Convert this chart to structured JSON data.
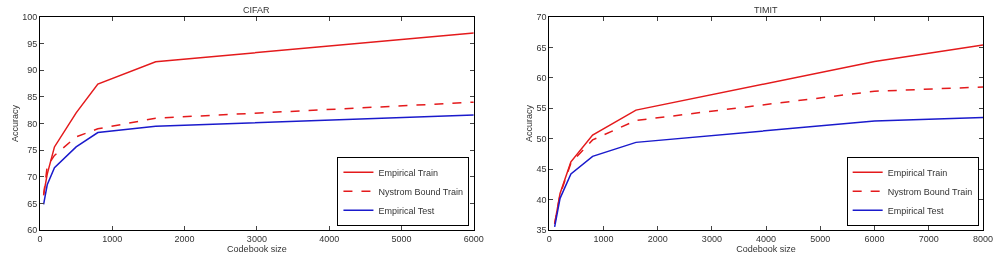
{
  "chart_data": [
    {
      "type": "line",
      "title": "CIFAR",
      "xlabel": "Codebook size",
      "ylabel": "Accuracy",
      "x": [
        50,
        100,
        200,
        500,
        800,
        1600,
        6000
      ],
      "series": [
        {
          "name": "Empirical Train",
          "color": "#e41a1c",
          "line_style": "solid",
          "values": [
            66.7,
            70.5,
            75.6,
            82,
            87.4,
            91.6,
            97
          ]
        },
        {
          "name": "Nystrom Bound Train",
          "color": "#e41a1c",
          "line_style": "dashed",
          "values": [
            66.5,
            72,
            74,
            77.5,
            79,
            81,
            84
          ]
        },
        {
          "name": "Empirical Test",
          "color": "#1a1acc",
          "line_style": "solid",
          "values": [
            64.8,
            68.5,
            71.7,
            75.6,
            78.3,
            79.5,
            81.6
          ]
        }
      ],
      "xlim": [
        0,
        6000
      ],
      "xticks": [
        0,
        1000,
        2000,
        3000,
        4000,
        5000,
        6000
      ],
      "ylim": [
        60,
        100
      ],
      "yticks": [
        60,
        65,
        70,
        75,
        80,
        85,
        90,
        95,
        100
      ],
      "legend": "bottom right",
      "marker": "none"
    },
    {
      "type": "line",
      "title": "TIMIT",
      "xlabel": "Codebook size",
      "ylabel": "Accuracy",
      "x": [
        100,
        200,
        400,
        800,
        1600,
        6000,
        8000
      ],
      "series": [
        {
          "name": "Empirical Train",
          "color": "#e41a1c",
          "line_style": "solid",
          "values": [
            36,
            41,
            46.2,
            50.6,
            54.7,
            62.7,
            65.4
          ]
        },
        {
          "name": "Nystrom Bound Train",
          "color": "#e41a1c",
          "line_style": "dashed",
          "values": [
            36,
            40.8,
            46,
            49.8,
            53,
            57.8,
            58.5
          ]
        },
        {
          "name": "Empirical Test",
          "color": "#1a1acc",
          "line_style": "solid",
          "values": [
            35.5,
            40.2,
            44.2,
            47.1,
            49.4,
            52.9,
            53.5
          ]
        }
      ],
      "xlim": [
        0,
        8000
      ],
      "xticks": [
        0,
        1000,
        2000,
        3000,
        4000,
        5000,
        6000,
        7000,
        8000
      ],
      "ylim": [
        35,
        70
      ],
      "yticks": [
        35,
        40,
        45,
        50,
        55,
        60,
        65,
        70
      ],
      "legend": "bottom right",
      "marker": "none"
    }
  ]
}
